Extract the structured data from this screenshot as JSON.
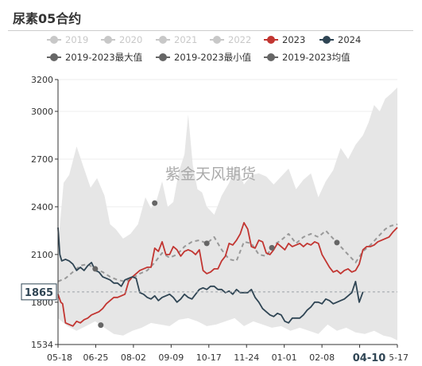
{
  "header": {
    "title": "尿素05合约"
  },
  "watermark": "紫金天风期货",
  "colors": {
    "inactive": "#c8c8c8",
    "s2023": "#c23531",
    "s2024": "#2f4554",
    "band": "#e6e6e6",
    "avg": "#999999",
    "marker": "#666666"
  },
  "chart_data": {
    "type": "line",
    "title": "尿素05合约",
    "legend": [
      {
        "name": "2019",
        "active": false,
        "marker": "circle-line"
      },
      {
        "name": "2020",
        "active": false,
        "marker": "circle-line"
      },
      {
        "name": "2021",
        "active": false,
        "marker": "circle-line"
      },
      {
        "name": "2022",
        "active": false,
        "marker": "circle-line"
      },
      {
        "name": "2023",
        "active": true,
        "marker": "circle-line"
      },
      {
        "name": "2024",
        "active": true,
        "marker": "circle-line"
      },
      {
        "name": "2019-2023最大值",
        "active": true,
        "marker": "circle-line"
      },
      {
        "name": "2019-2023最小值",
        "active": true,
        "marker": "circle-line"
      },
      {
        "name": "2019-2023均值",
        "active": true,
        "marker": "circle-line"
      }
    ],
    "x_ticks": [
      "05-18",
      "06-25",
      "08-02",
      "09-09",
      "10-17",
      "11-24",
      "01-01",
      "02-08",
      "04-10",
      "5-17"
    ],
    "x_pointer_label": "04-10",
    "y_ticks": [
      1534,
      1800,
      2100,
      2400,
      2700,
      3000,
      3200
    ],
    "ylim": [
      1534,
      3200
    ],
    "y_pointer_label": "1865",
    "y_pointer_value": 1865,
    "x_range": [
      0,
      365
    ],
    "series": [
      {
        "name": "2019-2023最大值",
        "x": [
          0,
          6,
          12,
          20,
          28,
          35,
          42,
          50,
          56,
          62,
          70,
          78,
          86,
          94,
          100,
          106,
          112,
          118,
          124,
          130,
          136,
          140,
          145,
          150,
          155,
          160,
          168,
          176,
          184,
          192,
          200,
          208,
          216,
          224,
          232,
          240,
          248,
          256,
          264,
          272,
          280,
          288,
          296,
          304,
          312,
          320,
          328,
          334,
          340,
          346,
          352,
          358,
          365
        ],
        "values": [
          2150,
          2550,
          2600,
          2780,
          2640,
          2520,
          2580,
          2470,
          2290,
          2260,
          2200,
          2230,
          2290,
          2460,
          2390,
          2440,
          2560,
          2400,
          2430,
          2620,
          2730,
          2980,
          2660,
          2510,
          2490,
          2400,
          2350,
          2470,
          2550,
          2660,
          2540,
          2600,
          2610,
          2590,
          2540,
          2590,
          2640,
          2510,
          2570,
          2610,
          2460,
          2560,
          2630,
          2770,
          2700,
          2790,
          2850,
          2930,
          3040,
          3000,
          3080,
          3110,
          3150
        ]
      },
      {
        "name": "2019-2023最小值",
        "x": [
          0,
          10,
          20,
          30,
          40,
          50,
          60,
          70,
          80,
          90,
          100,
          110,
          120,
          130,
          140,
          150,
          160,
          170,
          180,
          190,
          200,
          210,
          220,
          230,
          240,
          250,
          260,
          270,
          280,
          290,
          300,
          310,
          320,
          330,
          340,
          350,
          358,
          365
        ],
        "values": [
          1700,
          1650,
          1620,
          1650,
          1680,
          1640,
          1600,
          1590,
          1620,
          1640,
          1670,
          1660,
          1650,
          1690,
          1700,
          1680,
          1650,
          1660,
          1680,
          1700,
          1650,
          1680,
          1660,
          1640,
          1650,
          1620,
          1640,
          1620,
          1600,
          1660,
          1620,
          1640,
          1610,
          1600,
          1620,
          1590,
          1580,
          1560
        ]
      },
      {
        "name": "2019-2023均值",
        "x": [
          0,
          8,
          16,
          24,
          32,
          40,
          48,
          56,
          64,
          72,
          80,
          88,
          96,
          104,
          112,
          120,
          128,
          136,
          144,
          152,
          160,
          168,
          176,
          184,
          192,
          200,
          208,
          216,
          224,
          232,
          240,
          248,
          256,
          264,
          272,
          280,
          288,
          296,
          304,
          312,
          320,
          328,
          336,
          344,
          352,
          358,
          365
        ],
        "values": [
          1930,
          1950,
          1990,
          2030,
          2040,
          2010,
          1990,
          1960,
          1940,
          1930,
          1950,
          1980,
          2000,
          2050,
          2110,
          2080,
          2100,
          2150,
          2180,
          2190,
          2170,
          2210,
          2130,
          2070,
          2060,
          2180,
          2170,
          2100,
          2090,
          2160,
          2190,
          2230,
          2170,
          2210,
          2230,
          2210,
          2250,
          2200,
          2150,
          2100,
          2050,
          2120,
          2160,
          2210,
          2260,
          2280,
          2290
        ]
      },
      {
        "name": "2023",
        "x": [
          0,
          3,
          5,
          8,
          12,
          16,
          20,
          24,
          28,
          32,
          36,
          40,
          44,
          48,
          52,
          56,
          60,
          64,
          68,
          72,
          76,
          80,
          84,
          88,
          92,
          96,
          100,
          104,
          108,
          112,
          116,
          120,
          124,
          128,
          132,
          136,
          140,
          144,
          148,
          152,
          156,
          160,
          164,
          168,
          172,
          176,
          180,
          184,
          188,
          192,
          196,
          200,
          204,
          208,
          212,
          216,
          220,
          224,
          228,
          232,
          236,
          240,
          244,
          248,
          252,
          256,
          260,
          264,
          268,
          272,
          276,
          280,
          284,
          288,
          292,
          296,
          300,
          304,
          308,
          312,
          316,
          320,
          324,
          328,
          332,
          336,
          340,
          344,
          348,
          352,
          356,
          360,
          365
        ],
        "values": [
          1850,
          1800,
          1790,
          1670,
          1660,
          1650,
          1680,
          1670,
          1690,
          1700,
          1720,
          1730,
          1740,
          1760,
          1790,
          1810,
          1830,
          1830,
          1840,
          1850,
          1930,
          1960,
          1980,
          2000,
          2010,
          2020,
          2020,
          2140,
          2120,
          2180,
          2100,
          2100,
          2150,
          2130,
          2090,
          2120,
          2130,
          2120,
          2100,
          2130,
          2000,
          1980,
          1990,
          2010,
          2010,
          2060,
          2090,
          2170,
          2160,
          2190,
          2230,
          2300,
          2260,
          2150,
          2140,
          2190,
          2180,
          2110,
          2100,
          2130,
          2170,
          2150,
          2130,
          2170,
          2150,
          2160,
          2170,
          2150,
          2170,
          2160,
          2180,
          2170,
          2100,
          2060,
          2020,
          1990,
          2000,
          1980,
          2000,
          2010,
          1990,
          2000,
          2040,
          2130,
          2150,
          2150,
          2160,
          2180,
          2190,
          2200,
          2210,
          2240,
          2270
        ]
      },
      {
        "name": "2024",
        "x": [
          0,
          2,
          4,
          8,
          12,
          16,
          20,
          24,
          28,
          32,
          36,
          40,
          44,
          48,
          52,
          56,
          60,
          64,
          68,
          72,
          76,
          80,
          84,
          88,
          92,
          96,
          100,
          104,
          108,
          112,
          116,
          120,
          124,
          128,
          132,
          136,
          140,
          144,
          148,
          152,
          156,
          160,
          164,
          168,
          172,
          176,
          180,
          184,
          188,
          192,
          196,
          200,
          204,
          208,
          212,
          216,
          220,
          224,
          228,
          232,
          236,
          240,
          244,
          248,
          252,
          256,
          260,
          264,
          268,
          272,
          276,
          280,
          284,
          288,
          292,
          296,
          300,
          304,
          308,
          312,
          316,
          320,
          324,
          328
        ],
        "values": [
          2270,
          2100,
          2060,
          2070,
          2060,
          2040,
          2000,
          2020,
          2000,
          2030,
          2050,
          2000,
          1990,
          1960,
          1950,
          1940,
          1920,
          1920,
          1900,
          1940,
          1950,
          1960,
          1950,
          1860,
          1850,
          1830,
          1820,
          1840,
          1810,
          1830,
          1840,
          1850,
          1830,
          1800,
          1820,
          1850,
          1830,
          1820,
          1850,
          1880,
          1890,
          1880,
          1900,
          1900,
          1880,
          1880,
          1860,
          1870,
          1850,
          1880,
          1860,
          1860,
          1860,
          1880,
          1830,
          1800,
          1760,
          1740,
          1720,
          1710,
          1730,
          1720,
          1680,
          1670,
          1700,
          1700,
          1700,
          1720,
          1750,
          1770,
          1800,
          1800,
          1790,
          1820,
          1810,
          1790,
          1800,
          1810,
          1820,
          1840,
          1860,
          1930,
          1800,
          1865
        ]
      }
    ]
  }
}
